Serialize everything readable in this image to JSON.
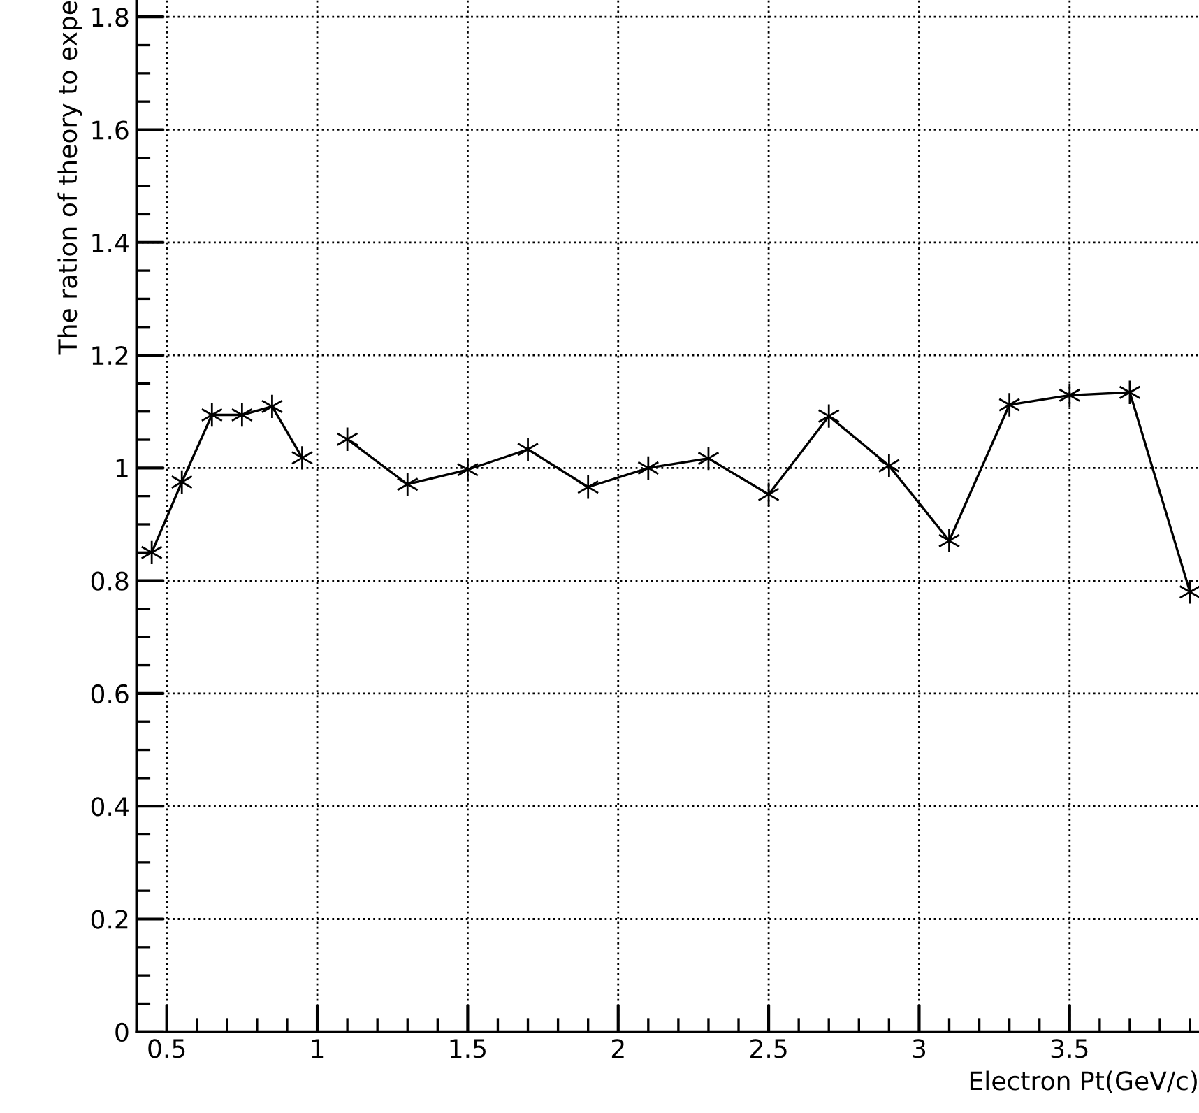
{
  "chart_data": {
    "type": "line",
    "xlabel": "Electron Pt(GeV/c)",
    "ylabel": "The ration of theory to expe",
    "x": [
      0.45,
      0.55,
      0.65,
      0.75,
      0.85,
      0.95,
      1.0,
      1.1,
      1.3,
      1.5,
      1.7,
      1.9,
      2.1,
      2.3,
      2.5,
      2.7,
      2.9,
      3.1,
      3.3,
      3.5,
      3.7,
      3.9
    ],
    "series": [
      {
        "color": "#000000",
        "values": [
          0.85,
          0.975,
          1.094,
          1.094,
          1.109,
          1.018,
          null,
          1.051,
          0.971,
          0.997,
          1.033,
          0.966,
          1.0,
          1.017,
          0.953,
          1.092,
          1.004,
          0.871,
          1.112,
          1.129,
          1.134,
          0.78
        ]
      }
    ],
    "xlim": [
      0.4,
      3.93
    ],
    "ylim": [
      0,
      1.83
    ],
    "xticks": [
      0.5,
      1,
      1.5,
      2,
      2.5,
      3,
      3.5
    ],
    "yticks": [
      0,
      0.2,
      0.4,
      0.6,
      0.8,
      1,
      1.2,
      1.4,
      1.6,
      1.8
    ],
    "grid": true,
    "marker": "cross",
    "line_style": "solid"
  }
}
